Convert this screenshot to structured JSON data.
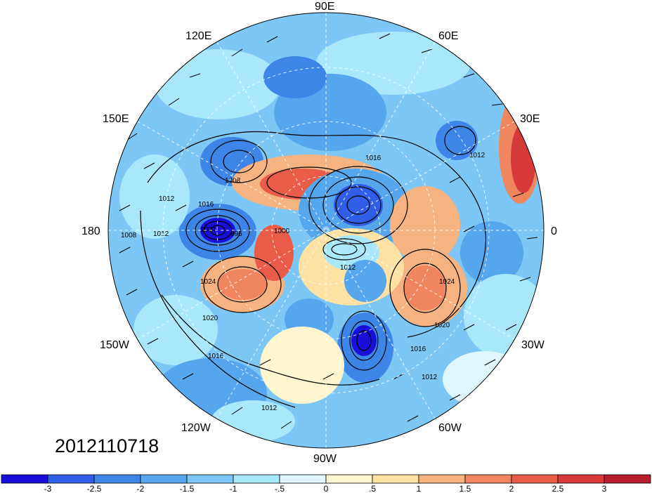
{
  "map": {
    "projection": "north-polar-stereographic",
    "longitude_labels": [
      "90E",
      "60E",
      "30E",
      "0",
      "30W",
      "60W",
      "90W",
      "120W",
      "150W",
      "180",
      "150E",
      "120E"
    ],
    "contour_labels": [
      "1016",
      "1008",
      "1012",
      "1012",
      "1008",
      "1004",
      "996",
      "1000",
      "1016",
      "1012",
      "1024",
      "1020",
      "1016",
      "1024",
      "1020",
      "1016",
      "1012",
      "1012",
      "1012"
    ],
    "date_stamp": "2012110718"
  },
  "colorbar": {
    "colors": [
      "#1a0fd9",
      "#2f5fe6",
      "#3d86e8",
      "#56a6ee",
      "#7cc7f5",
      "#a9e8fb",
      "#dff7ff",
      "#fff5cf",
      "#fde2a4",
      "#f6b27f",
      "#f0865e",
      "#e85c48",
      "#d83a3a",
      "#b81d2e"
    ],
    "tick_labels": [
      "-3",
      "-2.5",
      "-2",
      "-1.5",
      "-1",
      "-.5",
      "0",
      ".5",
      "1",
      "1.5",
      "2",
      "2.5",
      "3"
    ]
  }
}
